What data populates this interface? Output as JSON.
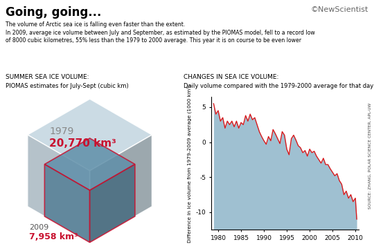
{
  "header": {
    "title": "Going, going...",
    "subtitle": "The volume of Arctic sea ice is falling even faster than the extent.\nIn 2009, average ice volume between July and September, as estimated by the PIOMAS model, fell to a record low\nof 8000 cubic kilometres, 55% less than the 1979 to 2000 average. This year it is on course to be even lower",
    "brand": "©NewScientist",
    "source": "SOURCE: ZHANG, POLAR SCIENCE CENTER, APL-UW"
  },
  "chart_data": [
    {
      "type": "cube",
      "title": "SUMMER SEA ICE VOLUME:",
      "subtitle": "PIOMAS estimates for July-Sept (cubic km)",
      "categories": [
        "1979",
        "2009"
      ],
      "values": [
        20770,
        7958
      ],
      "value_labels": [
        "20,770 km³",
        "7,958 km³"
      ],
      "colors": [
        "#c9d9e3",
        "#5f8fa9"
      ]
    },
    {
      "type": "area",
      "title": "CHANGES IN SEA ICE VOLUME:",
      "subtitle": "Daily volume compared with the 1979-2000 average for that day",
      "y_label": "Difference in ice volume from 1979-2009 average (1000 km³)",
      "x": [
        1979.0,
        1979.5,
        1980.0,
        1980.5,
        1981.0,
        1981.5,
        1982.0,
        1982.5,
        1983.0,
        1983.5,
        1984.0,
        1984.5,
        1985.0,
        1985.5,
        1986.0,
        1986.5,
        1987.0,
        1987.5,
        1988.0,
        1988.5,
        1989.0,
        1989.5,
        1990.0,
        1990.5,
        1991.0,
        1991.5,
        1992.0,
        1992.5,
        1993.0,
        1993.5,
        1994.0,
        1994.5,
        1995.0,
        1995.5,
        1996.0,
        1996.5,
        1997.0,
        1997.5,
        1998.0,
        1998.5,
        1999.0,
        1999.5,
        2000.0,
        2000.5,
        2001.0,
        2001.5,
        2002.0,
        2002.5,
        2003.0,
        2003.5,
        2004.0,
        2004.5,
        2005.0,
        2005.5,
        2006.0,
        2006.5,
        2007.0,
        2007.5,
        2008.0,
        2008.5,
        2009.0,
        2009.5,
        2010.0,
        2010.3
      ],
      "values": [
        5.5,
        4.0,
        4.5,
        3.0,
        3.5,
        2.0,
        3.0,
        2.5,
        3.0,
        2.2,
        3.0,
        2.0,
        2.8,
        2.5,
        3.8,
        3.0,
        4.0,
        3.2,
        3.5,
        2.5,
        1.5,
        0.8,
        0.2,
        -0.3,
        0.8,
        0.2,
        1.8,
        1.2,
        0.5,
        -0.2,
        1.5,
        1.0,
        -1.0,
        -1.8,
        0.5,
        1.0,
        0.3,
        -0.5,
        -0.8,
        -1.5,
        -1.2,
        -2.0,
        -1.0,
        -1.5,
        -1.3,
        -2.0,
        -2.5,
        -3.0,
        -2.3,
        -3.2,
        -3.2,
        -3.8,
        -4.3,
        -4.8,
        -4.5,
        -5.5,
        -6.0,
        -7.5,
        -7.0,
        -8.0,
        -7.5,
        -8.5,
        -8.0,
        -11.0
      ],
      "color": "#d7191c",
      "xlim": [
        1978.5,
        2010.8
      ],
      "xticks": [
        1980,
        1985,
        1990,
        1995,
        2000,
        2005,
        2010
      ],
      "ylim": [
        -12.5,
        6.5
      ],
      "yticks": [
        5,
        0,
        -5,
        -10
      ],
      "grid": false
    }
  ]
}
